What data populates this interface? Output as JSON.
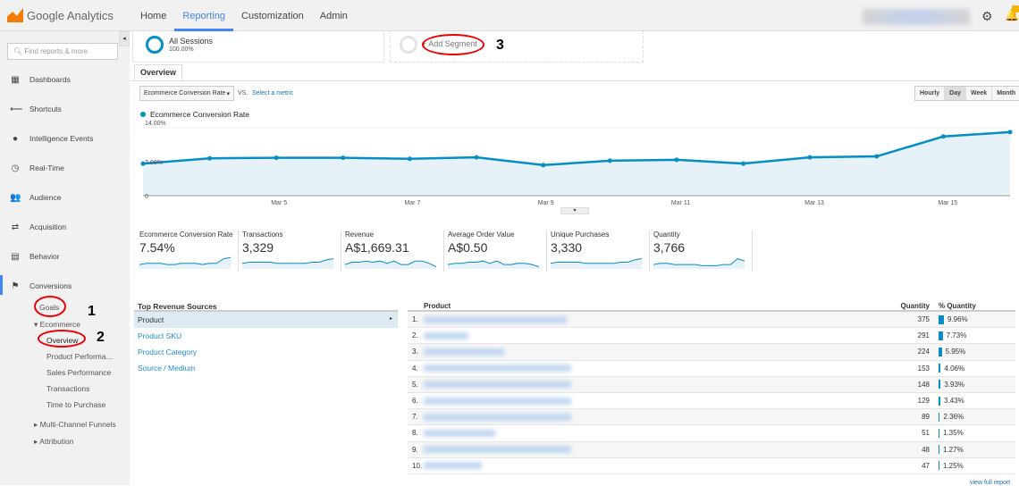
{
  "header": {
    "logo_text": "Google Analytics",
    "nav": [
      "Home",
      "Reporting",
      "Customization",
      "Admin"
    ],
    "active_nav": "Reporting"
  },
  "sidebar": {
    "search_placeholder": "Find reports & more",
    "items": [
      {
        "label": "Dashboards",
        "icon": "▦"
      },
      {
        "label": "Shortcuts",
        "icon": "⟵"
      },
      {
        "label": "Intelligence Events",
        "icon": "●"
      },
      {
        "label": "Real-Time",
        "icon": "◷"
      },
      {
        "label": "Audience",
        "icon": "👥"
      },
      {
        "label": "Acquisition",
        "icon": "⇄"
      },
      {
        "label": "Behavior",
        "icon": "▤"
      },
      {
        "label": "Conversions",
        "icon": "⚑"
      }
    ],
    "sub": {
      "goals": "Goals",
      "ecommerce": "Ecommerce",
      "overview": "Overview",
      "product_performance": "Product Performa...",
      "sales_performance": "Sales Performance",
      "transactions": "Transactions",
      "time_to_purchase": "Time to Purchase",
      "mcf": "Multi-Channel Funnels",
      "attribution": "Attribution"
    }
  },
  "segments": {
    "name": "All Sessions",
    "pct": "100.00%",
    "add": "+ Add Segment"
  },
  "tab": "Overview",
  "controls": {
    "metric": "Ecommerce Conversion Rate",
    "vs": "VS.",
    "select_metric": "Select a metric",
    "granularity": [
      "Hourly",
      "Day",
      "Week",
      "Month"
    ],
    "active_granularity": "Day"
  },
  "chart_data": {
    "type": "area",
    "series_name": "Ecommerce Conversion Rate",
    "y_ticks": [
      "14.00%",
      "7.00%",
      "0"
    ],
    "ylim": [
      0,
      14
    ],
    "x_ticks": [
      "Mar 5",
      "Mar 7",
      "Mar 9",
      "Mar 11",
      "Mar 13",
      "Mar 15"
    ],
    "x": [
      "Mar 3",
      "Mar 4",
      "Mar 5",
      "Mar 6",
      "Mar 7",
      "Mar 8",
      "Mar 9",
      "Mar 10",
      "Mar 11",
      "Mar 12",
      "Mar 13",
      "Mar 14",
      "Mar 15",
      "Mar 16"
    ],
    "values": [
      6.6,
      7.7,
      7.8,
      7.8,
      7.6,
      7.9,
      6.3,
      7.2,
      7.4,
      6.6,
      7.9,
      8.1,
      12.2,
      13.1
    ],
    "color": "#058dc7"
  },
  "scorecards": [
    {
      "label": "Ecommerce Conversion Rate",
      "value": "7.54%",
      "trend": [
        3,
        4,
        4,
        4,
        3,
        3,
        4,
        4,
        4,
        3,
        4,
        4,
        8,
        9
      ]
    },
    {
      "label": "Transactions",
      "value": "3,329",
      "trend": [
        4,
        5,
        5,
        5,
        5,
        4,
        4,
        4,
        4,
        4,
        5,
        5,
        7,
        8
      ]
    },
    {
      "label": "Revenue",
      "value": "A$1,669.31",
      "trend": [
        3,
        5,
        5,
        6,
        5,
        6,
        4,
        6,
        3,
        3,
        6,
        6,
        4,
        1
      ]
    },
    {
      "label": "Average Order Value",
      "value": "A$0.50",
      "trend": [
        3,
        4,
        4,
        5,
        5,
        6,
        4,
        6,
        3,
        3,
        4,
        4,
        3,
        1
      ]
    },
    {
      "label": "Unique Purchases",
      "value": "3,330",
      "trend": [
        4,
        5,
        5,
        5,
        5,
        4,
        4,
        4,
        4,
        4,
        5,
        5,
        7,
        8
      ]
    },
    {
      "label": "Quantity",
      "value": "3,766",
      "trend": [
        3,
        4,
        4,
        3,
        3,
        3,
        3,
        2,
        2,
        2,
        3,
        3,
        8,
        6
      ]
    }
  ],
  "top_sources": {
    "title": "Top Revenue Sources",
    "items": [
      "Product",
      "Product SKU",
      "Product Category",
      "Source / Medium"
    ]
  },
  "products": {
    "headers": [
      "Product",
      "Quantity",
      "% Quantity"
    ],
    "rows": [
      {
        "n": "1.",
        "q": "375",
        "p": "9.96%",
        "f": 9.96
      },
      {
        "n": "2.",
        "q": "291",
        "p": "7.73%",
        "f": 7.73
      },
      {
        "n": "3.",
        "q": "224",
        "p": "5.95%",
        "f": 5.95
      },
      {
        "n": "4.",
        "q": "153",
        "p": "4.06%",
        "f": 4.06
      },
      {
        "n": "5.",
        "q": "148",
        "p": "3.93%",
        "f": 3.93
      },
      {
        "n": "6.",
        "q": "129",
        "p": "3.43%",
        "f": 3.43
      },
      {
        "n": "7.",
        "q": "89",
        "p": "2.36%",
        "f": 2.36
      },
      {
        "n": "8.",
        "q": "51",
        "p": "1.35%",
        "f": 1.35
      },
      {
        "n": "9.",
        "q": "48",
        "p": "1.27%",
        "f": 1.27
      },
      {
        "n": "10.",
        "q": "47",
        "p": "1.25%",
        "f": 1.25
      }
    ],
    "view_full": "view full report"
  },
  "annotations": [
    "1",
    "2",
    "3"
  ]
}
